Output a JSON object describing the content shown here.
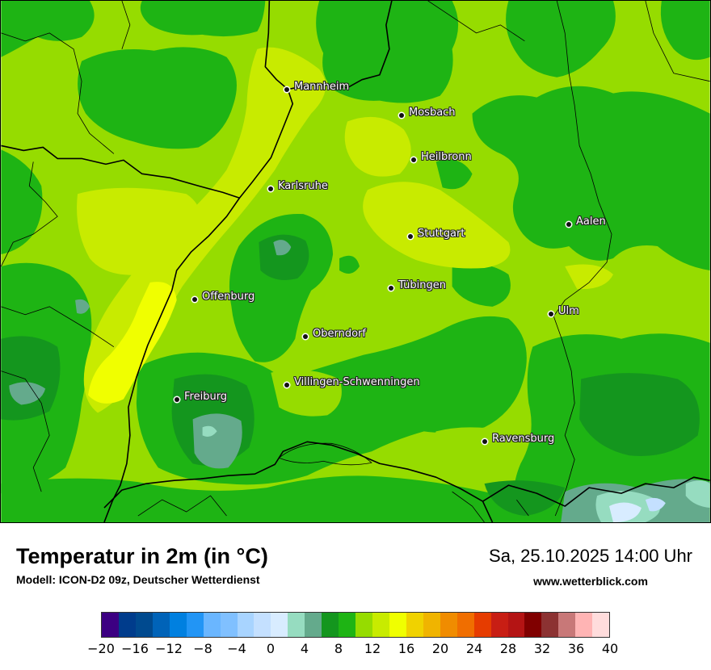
{
  "map": {
    "cities": [
      {
        "name": "Mannheim"
      },
      {
        "name": "Mosbach"
      },
      {
        "name": "Heilbronn"
      },
      {
        "name": "Karlsruhe"
      },
      {
        "name": "Aalen"
      },
      {
        "name": "Stuttgart"
      },
      {
        "name": "Tübingen"
      },
      {
        "name": "Offenburg"
      },
      {
        "name": "Ulm"
      },
      {
        "name": "Oberndorf"
      },
      {
        "name": "Villingen-Schwenningen"
      },
      {
        "name": "Freiburg"
      },
      {
        "name": "Ravensburg"
      }
    ]
  },
  "footer": {
    "title": "Temperatur in 2m (in °C)",
    "model": "Modell: ICON-D2 09z, Deutscher Wetterdienst",
    "valid_time": "Sa, 25.10.2025 14:00 Uhr",
    "website": "www.wetterblick.com"
  },
  "colorbar": {
    "colors": [
      "#3c0082",
      "#003c8c",
      "#004a8f",
      "#0063b8",
      "#0080e0",
      "#2295f5",
      "#6ab6ff",
      "#80c0ff",
      "#a8d4ff",
      "#c4e0ff",
      "#d8ecff",
      "#96dcc0",
      "#64aa8c",
      "#14961e",
      "#1eb414",
      "#96dc00",
      "#c8eb00",
      "#f0ff00",
      "#f0d200",
      "#f0b400",
      "#f08c00",
      "#f06e00",
      "#e63c00",
      "#c81e14",
      "#b41414",
      "#800000",
      "#8c3232",
      "#c87878",
      "#ffb4b4",
      "#ffdcdc"
    ],
    "ticks": [
      "−20",
      "−16",
      "−12",
      "−8",
      "−4",
      "0",
      "4",
      "8",
      "12",
      "16",
      "20",
      "24",
      "28",
      "32",
      "36",
      "40"
    ]
  }
}
